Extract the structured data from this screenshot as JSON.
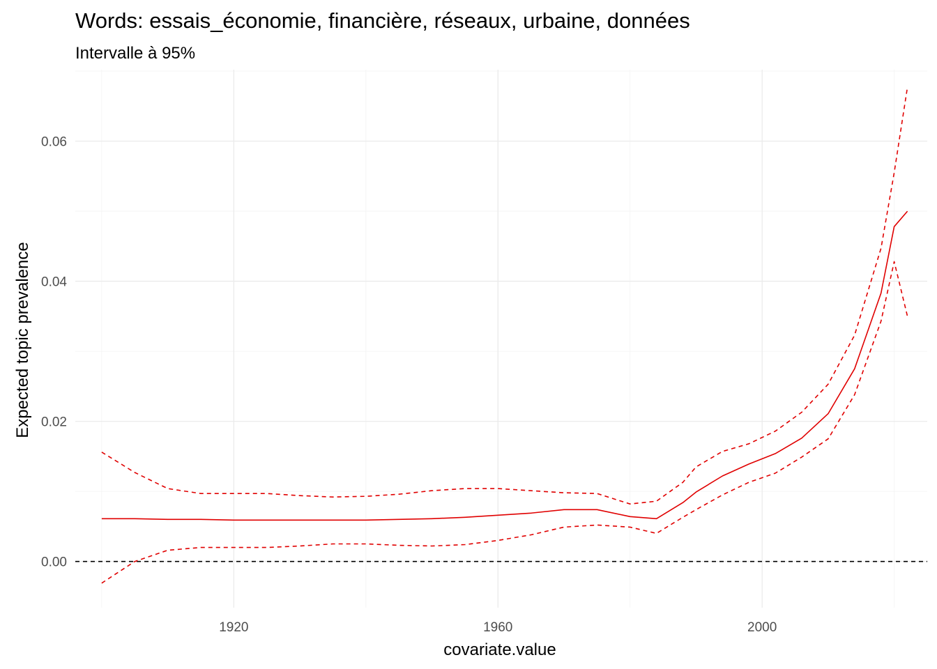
{
  "chart_data": {
    "type": "line",
    "title": "Words: essais_économie, financière, réseaux, urbaine, données",
    "subtitle": "Intervalle à 95%",
    "xlabel": "covariate.value",
    "ylabel": "Expected topic prevalence",
    "xlim": [
      1896,
      2025
    ],
    "ylim": [
      -0.0066,
      0.0702
    ],
    "x_ticks": [
      1920,
      1960,
      2000
    ],
    "x_tick_labels": [
      "1920",
      "1960",
      "2000"
    ],
    "y_ticks": [
      0.0,
      0.02,
      0.04,
      0.06
    ],
    "y_tick_labels": [
      "0.00",
      "0.02",
      "0.04",
      "0.06"
    ],
    "grid": true,
    "reference_line": {
      "y": 0,
      "style": "dashed",
      "color": "#000000"
    },
    "color": "#e00000",
    "x": [
      1900,
      1905,
      1910,
      1915,
      1920,
      1925,
      1930,
      1935,
      1940,
      1945,
      1950,
      1955,
      1960,
      1965,
      1970,
      1975,
      1980,
      1984,
      1988,
      1990,
      1994,
      1998,
      2002,
      2006,
      2010,
      2014,
      2018,
      2020,
      2022
    ],
    "series": [
      {
        "role": "estimate",
        "style": "solid",
        "values": [
          0.0061,
          0.0061,
          0.006,
          0.006,
          0.0059,
          0.0059,
          0.0059,
          0.0059,
          0.0059,
          0.006,
          0.0061,
          0.0063,
          0.0066,
          0.0069,
          0.0074,
          0.0074,
          0.0064,
          0.0061,
          0.0084,
          0.0099,
          0.0122,
          0.0139,
          0.0154,
          0.0176,
          0.0211,
          0.0275,
          0.0383,
          0.0478,
          0.05
        ]
      },
      {
        "role": "upper",
        "style": "dashed",
        "values": [
          0.0156,
          0.0127,
          0.0104,
          0.0097,
          0.0097,
          0.0097,
          0.0094,
          0.0092,
          0.0093,
          0.0096,
          0.0101,
          0.0104,
          0.0104,
          0.0101,
          0.0098,
          0.0097,
          0.0082,
          0.0086,
          0.0113,
          0.0135,
          0.0157,
          0.0168,
          0.0186,
          0.0213,
          0.0253,
          0.0323,
          0.0447,
          0.0555,
          0.0677
        ]
      },
      {
        "role": "lower",
        "style": "dashed",
        "values": [
          -0.0031,
          0.0,
          0.0016,
          0.002,
          0.002,
          0.002,
          0.0022,
          0.0025,
          0.0025,
          0.0023,
          0.0022,
          0.0024,
          0.003,
          0.0038,
          0.0049,
          0.0052,
          0.0049,
          0.004,
          0.0063,
          0.0074,
          0.0095,
          0.0113,
          0.0126,
          0.0149,
          0.0175,
          0.0238,
          0.0343,
          0.0428,
          0.035
        ]
      }
    ]
  }
}
